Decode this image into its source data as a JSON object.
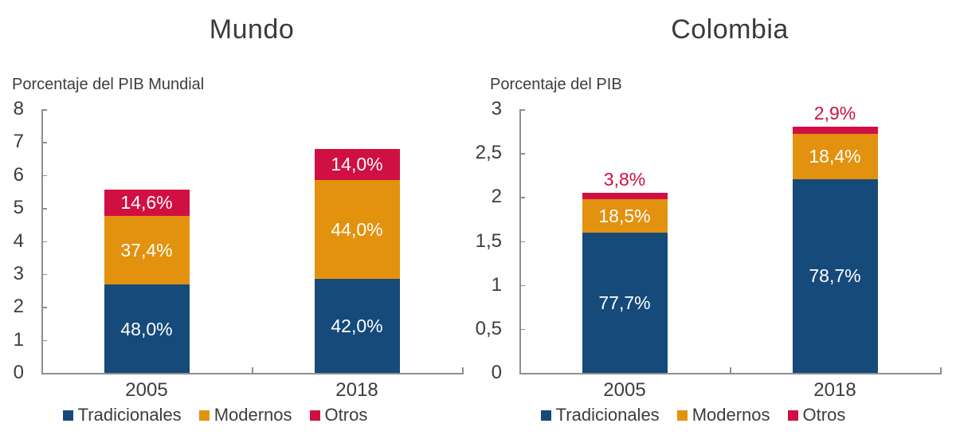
{
  "palette": {
    "axis": "#8f8f8f",
    "text": "#3d3d3d",
    "bar_label": "#ffffff",
    "tradicionales": "#164a7b",
    "modernos": "#e2920f",
    "otros": "#d01042"
  },
  "chart_data": [
    {
      "type": "bar",
      "stacked": true,
      "title": "Mundo",
      "ylabel": "Porcentaje del PIB Mundial",
      "xlabel": "",
      "ylim": [
        0,
        8
      ],
      "ytick_values": [
        0,
        1,
        2,
        3,
        4,
        5,
        6,
        7,
        8
      ],
      "ytick_labels": [
        "0",
        "1",
        "2",
        "3",
        "4",
        "5",
        "6",
        "7",
        "8"
      ],
      "categories": [
        "2005",
        "2018"
      ],
      "series": [
        {
          "name": "Tradicionales",
          "color": "#164a7b"
        },
        {
          "name": "Modernos",
          "color": "#e2920f"
        },
        {
          "name": "Otros",
          "color": "#d01042"
        }
      ],
      "grid": false,
      "legend_position": "bottom",
      "bars": [
        {
          "category": "2005",
          "total": 5.57,
          "segments": [
            {
              "series": "Tradicionales",
              "pct": 48.0,
              "label": "48,0%",
              "label_position": "inside"
            },
            {
              "series": "Modernos",
              "pct": 37.4,
              "label": "37,4%",
              "label_position": "inside"
            },
            {
              "series": "Otros",
              "pct": 14.6,
              "label": "14,6%",
              "label_position": "inside"
            }
          ]
        },
        {
          "category": "2018",
          "total": 6.8,
          "segments": [
            {
              "series": "Tradicionales",
              "pct": 42.0,
              "label": "42,0%",
              "label_position": "inside"
            },
            {
              "series": "Modernos",
              "pct": 44.0,
              "label": "44,0%",
              "label_position": "inside"
            },
            {
              "series": "Otros",
              "pct": 14.0,
              "label": "14,0%",
              "label_position": "inside"
            }
          ]
        }
      ],
      "legend": {
        "items": [
          "Tradicionales",
          "Modernos",
          "Otros"
        ]
      }
    },
    {
      "type": "bar",
      "stacked": true,
      "title": "Colombia",
      "ylabel": "Porcentaje del PIB",
      "xlabel": "",
      "ylim": [
        0,
        3
      ],
      "ytick_values": [
        0,
        0.5,
        1,
        1.5,
        2,
        2.5,
        3
      ],
      "ytick_labels": [
        "0",
        "0,5",
        "1",
        "1,5",
        "2",
        "2,5",
        "3"
      ],
      "categories": [
        "2005",
        "2018"
      ],
      "series": [
        {
          "name": "Tradicionales",
          "color": "#164a7b"
        },
        {
          "name": "Modernos",
          "color": "#e2920f"
        },
        {
          "name": "Otros",
          "color": "#d01042"
        }
      ],
      "grid": false,
      "legend_position": "bottom",
      "bars": [
        {
          "category": "2005",
          "total": 2.05,
          "segments": [
            {
              "series": "Tradicionales",
              "pct": 77.7,
              "label": "77,7%",
              "label_position": "inside"
            },
            {
              "series": "Modernos",
              "pct": 18.5,
              "label": "18,5%",
              "label_position": "inside"
            },
            {
              "series": "Otros",
              "pct": 3.8,
              "label": "3,8%",
              "label_position": "above"
            }
          ]
        },
        {
          "category": "2018",
          "total": 2.8,
          "segments": [
            {
              "series": "Tradicionales",
              "pct": 78.7,
              "label": "78,7%",
              "label_position": "inside"
            },
            {
              "series": "Modernos",
              "pct": 18.4,
              "label": "18,4%",
              "label_position": "inside"
            },
            {
              "series": "Otros",
              "pct": 2.9,
              "label": "2,9%",
              "label_position": "above"
            }
          ]
        }
      ],
      "legend": {
        "items": [
          "Tradicionales",
          "Modernos",
          "Otros"
        ]
      }
    }
  ]
}
